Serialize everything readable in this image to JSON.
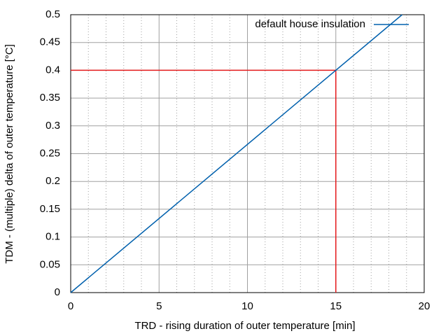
{
  "chart_data": {
    "type": "line",
    "xlabel": "TRD - rising duration of outer temperature [min]",
    "ylabel": "TDM - (multiple) delta of outer temperature [°C]",
    "series": [
      {
        "name": "default house insulation",
        "color": "#0060ad",
        "x": [
          0,
          18.75
        ],
        "values": [
          0,
          0.5
        ]
      }
    ],
    "reference_point": {
      "x": 15,
      "y": 0.4,
      "color": "#e41a1c"
    },
    "xlim": [
      0,
      20
    ],
    "xticks": [
      0,
      5,
      10,
      15,
      20
    ],
    "xminor": 5,
    "ylim": [
      0,
      0.5
    ],
    "yticks": [
      0,
      0.05,
      0.1,
      0.15,
      0.2,
      0.25,
      0.3,
      0.35,
      0.4,
      0.45,
      0.5
    ],
    "grid": true,
    "legend": "top-right"
  }
}
